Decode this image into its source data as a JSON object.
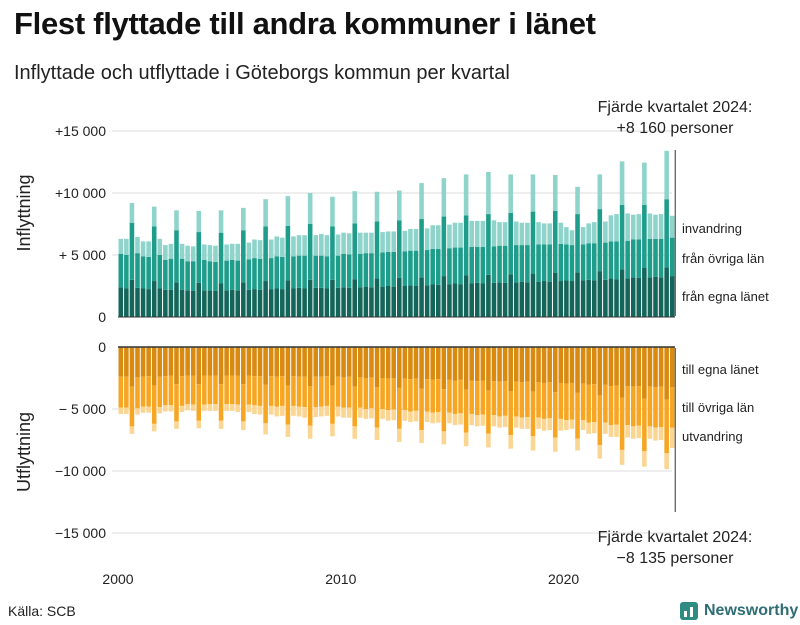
{
  "title": "Flest flyttade till andra kommuner i länet",
  "subtitle": "Inflyttade och utflyttade i Göteborgs kommun per kvartal",
  "source": "Källa: SCB",
  "brand": "Newsworthy",
  "annotations": {
    "top_line1": "Fjärde kvartalet 2024:",
    "top_line2": "+8 160 personer",
    "bottom_line1": "Fjärde kvartalet 2024:",
    "bottom_line2": "−8 135 personer"
  },
  "colors": {
    "in_egna": "#15665a",
    "in_ovriga": "#1f9d8b",
    "in_invandring": "#8fd4cb",
    "out_egna": "#d98a10",
    "out_ovriga": "#f6a623",
    "out_utvandring": "#fbd592",
    "grid": "#dddddd",
    "axis": "#333333"
  },
  "chart_data": {
    "type": "bar",
    "stacked": true,
    "title": "Flest flyttade till andra kommuner i länet",
    "panels": [
      {
        "name": "Inflyttning",
        "ylabel": "Inflyttning",
        "ylim": [
          0,
          16000
        ],
        "yticks": [
          {
            "value": 0,
            "label": "0"
          },
          {
            "value": 5000,
            "label": "+ 5 000"
          },
          {
            "value": 10000,
            "label": "+10 000"
          },
          {
            "value": 15000,
            "label": "+15 000"
          }
        ],
        "series": [
          {
            "name": "från egna länet",
            "label": "från egna länet",
            "color_key": "in_egna"
          },
          {
            "name": "från övriga län",
            "label": "från övriga län",
            "color_key": "in_ovriga"
          },
          {
            "name": "invandring",
            "label": "invandring",
            "color_key": "in_invandring"
          }
        ]
      },
      {
        "name": "Utflyttning",
        "ylabel": "Utflyttning",
        "ylim": [
          -15000,
          0
        ],
        "yticks": [
          {
            "value": 0,
            "label": "0"
          },
          {
            "value": -5000,
            "label": "− 5 000"
          },
          {
            "value": -10000,
            "label": "−10 000"
          },
          {
            "value": -15000,
            "label": "−15 000"
          }
        ],
        "series": [
          {
            "name": "till egna länet",
            "label": "till egna länet",
            "color_key": "out_egna"
          },
          {
            "name": "till övriga län",
            "label": "till övriga län",
            "color_key": "out_ovriga"
          },
          {
            "name": "utvandring",
            "label": "utvandring",
            "color_key": "out_utvandring"
          }
        ]
      }
    ],
    "x": {
      "start_year": 2000,
      "quarters": 100,
      "ticks": [
        {
          "year": 2000,
          "label": "2000"
        },
        {
          "year": 2010,
          "label": "2010"
        },
        {
          "year": 2020,
          "label": "2020"
        }
      ]
    },
    "years": [
      {
        "year": 2000,
        "in_egna": [
          2400,
          2300,
          3000,
          2350
        ],
        "in_ovriga": [
          2700,
          2700,
          4600,
          2800
        ],
        "in_inv": [
          1200,
          1300,
          1600,
          1300
        ],
        "out_egna": [
          2400,
          2400,
          3200,
          2450
        ],
        "out_ovriga": [
          2500,
          2500,
          3200,
          2500
        ],
        "out_utv": [
          500,
          500,
          600,
          500
        ]
      },
      {
        "year": 2001,
        "in_egna": [
          2300,
          2250,
          2900,
          2300
        ],
        "in_ovriga": [
          2600,
          2600,
          4400,
          2700
        ],
        "in_inv": [
          1200,
          1250,
          1600,
          1300
        ],
        "out_egna": [
          2400,
          2350,
          3100,
          2400
        ],
        "out_ovriga": [
          2400,
          2450,
          3100,
          2450
        ],
        "out_utv": [
          500,
          500,
          600,
          500
        ]
      },
      {
        "year": 2002,
        "in_egna": [
          2200,
          2200,
          2800,
          2200
        ],
        "in_ovriga": [
          2400,
          2500,
          4200,
          2500
        ],
        "in_inv": [
          1200,
          1200,
          1600,
          1200
        ],
        "out_egna": [
          2350,
          2300,
          3000,
          2350
        ],
        "out_ovriga": [
          2350,
          2400,
          3000,
          2400
        ],
        "out_utv": [
          500,
          500,
          600,
          500
        ]
      },
      {
        "year": 2003,
        "in_egna": [
          2150,
          2100,
          2750,
          2150
        ],
        "in_ovriga": [
          2350,
          2400,
          4100,
          2450
        ],
        "in_inv": [
          1250,
          1200,
          1700,
          1250
        ],
        "out_egna": [
          2300,
          2300,
          3000,
          2300
        ],
        "out_ovriga": [
          2300,
          2350,
          2950,
          2350
        ],
        "out_utv": [
          500,
          500,
          600,
          500
        ]
      },
      {
        "year": 2004,
        "in_egna": [
          2150,
          2100,
          2700,
          2150
        ],
        "in_ovriga": [
          2350,
          2350,
          4100,
          2400
        ],
        "in_inv": [
          1300,
          1300,
          1800,
          1300
        ],
        "out_egna": [
          2300,
          2300,
          3000,
          2300
        ],
        "out_ovriga": [
          2300,
          2300,
          2950,
          2300
        ],
        "out_utv": [
          550,
          550,
          650,
          550
        ]
      },
      {
        "year": 2005,
        "in_egna": [
          2200,
          2150,
          2800,
          2200
        ],
        "in_ovriga": [
          2400,
          2400,
          4200,
          2450
        ],
        "in_inv": [
          1300,
          1350,
          1800,
          1350
        ],
        "out_egna": [
          2300,
          2300,
          3000,
          2300
        ],
        "out_ovriga": [
          2300,
          2350,
          3000,
          2350
        ],
        "out_utv": [
          550,
          600,
          700,
          600
        ]
      },
      {
        "year": 2006,
        "in_egna": [
          2250,
          2200,
          2900,
          2250
        ],
        "in_ovriga": [
          2500,
          2500,
          4400,
          2500
        ],
        "in_inv": [
          1500,
          1500,
          2200,
          1500
        ],
        "out_egna": [
          2350,
          2350,
          3050,
          2350
        ],
        "out_ovriga": [
          2350,
          2400,
          3100,
          2400
        ],
        "out_utv": [
          700,
          700,
          900,
          700
        ]
      },
      {
        "year": 2007,
        "in_egna": [
          2300,
          2250,
          2950,
          2300
        ],
        "in_ovriga": [
          2600,
          2600,
          4400,
          2600
        ],
        "in_inv": [
          1600,
          1550,
          2400,
          1600
        ],
        "out_egna": [
          2400,
          2350,
          3100,
          2350
        ],
        "out_ovriga": [
          2400,
          2400,
          3150,
          2400
        ],
        "out_utv": [
          800,
          800,
          1000,
          800
        ]
      },
      {
        "year": 2008,
        "in_egna": [
          2350,
          2300,
          3000,
          2350
        ],
        "in_ovriga": [
          2600,
          2650,
          4500,
          2600
        ],
        "in_inv": [
          1650,
          1650,
          2500,
          1650
        ],
        "out_egna": [
          2400,
          2400,
          3150,
          2400
        ],
        "out_ovriga": [
          2400,
          2450,
          3200,
          2450
        ],
        "out_utv": [
          800,
          850,
          1050,
          800
        ]
      },
      {
        "year": 2009,
        "in_egna": [
          2350,
          2300,
          3000,
          2350
        ],
        "in_ovriga": [
          2600,
          2600,
          4300,
          2600
        ],
        "in_inv": [
          1750,
          1700,
          2400,
          1700
        ],
        "out_egna": [
          2400,
          2350,
          3100,
          2400
        ],
        "out_ovriga": [
          2400,
          2400,
          3100,
          2400
        ],
        "out_utv": [
          800,
          800,
          1000,
          800
        ]
      },
      {
        "year": 2010,
        "in_egna": [
          2400,
          2350,
          3050,
          2400
        ],
        "in_ovriga": [
          2700,
          2700,
          4500,
          2700
        ],
        "in_inv": [
          1700,
          1700,
          2600,
          1700
        ],
        "out_egna": [
          2450,
          2400,
          3200,
          2450
        ],
        "out_ovriga": [
          2450,
          2500,
          3200,
          2450
        ],
        "out_utv": [
          800,
          800,
          1000,
          800
        ]
      },
      {
        "year": 2011,
        "in_egna": [
          2450,
          2400,
          3100,
          2450
        ],
        "in_ovriga": [
          2700,
          2750,
          4600,
          2750
        ],
        "in_inv": [
          1650,
          1650,
          2400,
          1650
        ],
        "out_egna": [
          2500,
          2450,
          3250,
          2500
        ],
        "out_ovriga": [
          2500,
          2500,
          3250,
          2500
        ],
        "out_utv": [
          800,
          800,
          1000,
          800
        ]
      },
      {
        "year": 2012,
        "in_egna": [
          2500,
          2450,
          3150,
          2500
        ],
        "in_ovriga": [
          2750,
          2800,
          4650,
          2800
        ],
        "in_inv": [
          1650,
          1650,
          2400,
          1650
        ],
        "out_egna": [
          2550,
          2500,
          3300,
          2550
        ],
        "out_ovriga": [
          2550,
          2550,
          3300,
          2550
        ],
        "out_utv": [
          850,
          850,
          1050,
          850
        ]
      },
      {
        "year": 2013,
        "in_egna": [
          2550,
          2500,
          3200,
          2550
        ],
        "in_ovriga": [
          2800,
          2850,
          4700,
          2850
        ],
        "in_inv": [
          1750,
          1750,
          2900,
          1750
        ],
        "out_egna": [
          2600,
          2550,
          3350,
          2600
        ],
        "out_ovriga": [
          2600,
          2600,
          3350,
          2600
        ],
        "out_utv": [
          850,
          850,
          1050,
          850
        ]
      },
      {
        "year": 2014,
        "in_egna": [
          2650,
          2600,
          3300,
          2650
        ],
        "in_ovriga": [
          2850,
          2900,
          4800,
          2900
        ],
        "in_inv": [
          1900,
          1900,
          3100,
          1900
        ],
        "out_egna": [
          2650,
          2600,
          3400,
          2650
        ],
        "out_ovriga": [
          2650,
          2650,
          3400,
          2650
        ],
        "out_utv": [
          850,
          850,
          1050,
          850
        ]
      },
      {
        "year": 2015,
        "in_egna": [
          2700,
          2650,
          3350,
          2700
        ],
        "in_ovriga": [
          2900,
          2950,
          4850,
          2950
        ],
        "in_inv": [
          2000,
          2000,
          3300,
          2100
        ],
        "out_egna": [
          2700,
          2650,
          3450,
          2700
        ],
        "out_ovriga": [
          2700,
          2700,
          3450,
          2700
        ],
        "out_utv": [
          900,
          900,
          1100,
          900
        ]
      },
      {
        "year": 2016,
        "in_egna": [
          2750,
          2700,
          3400,
          2750
        ],
        "in_ovriga": [
          2900,
          2950,
          4900,
          2950
        ],
        "in_inv": [
          2100,
          2100,
          3400,
          2100
        ],
        "out_egna": [
          2750,
          2700,
          3500,
          2750
        ],
        "out_ovriga": [
          2750,
          2750,
          3500,
          2750
        ],
        "out_utv": [
          900,
          900,
          1100,
          900
        ]
      },
      {
        "year": 2017,
        "in_egna": [
          2800,
          2750,
          3450,
          2800
        ],
        "in_ovriga": [
          2950,
          3000,
          4950,
          3000
        ],
        "in_inv": [
          1900,
          1900,
          3100,
          1900
        ],
        "out_egna": [
          2800,
          2750,
          3550,
          2800
        ],
        "out_ovriga": [
          2800,
          2800,
          3550,
          2800
        ],
        "out_utv": [
          900,
          900,
          1100,
          900
        ]
      },
      {
        "year": 2018,
        "in_egna": [
          2850,
          2800,
          3500,
          2850
        ],
        "in_ovriga": [
          2950,
          3000,
          5000,
          3000
        ],
        "in_inv": [
          1800,
          1800,
          3000,
          1800
        ],
        "out_egna": [
          2850,
          2800,
          3600,
          2850
        ],
        "out_ovriga": [
          2850,
          2850,
          3600,
          2850
        ],
        "out_utv": [
          900,
          950,
          1150,
          900
        ]
      },
      {
        "year": 2019,
        "in_egna": [
          2900,
          2850,
          3550,
          2900
        ],
        "in_ovriga": [
          2950,
          3000,
          5000,
          3000
        ],
        "in_inv": [
          1700,
          1700,
          2900,
          1700
        ],
        "out_egna": [
          2900,
          2850,
          3650,
          2900
        ],
        "out_ovriga": [
          2900,
          2900,
          3650,
          2900
        ],
        "out_utv": [
          950,
          950,
          1150,
          950
        ]
      },
      {
        "year": 2020,
        "in_egna": [
          2950,
          2900,
          3600,
          2950
        ],
        "in_ovriga": [
          2900,
          2900,
          4700,
          2900
        ],
        "in_inv": [
          1400,
          1200,
          2200,
          1400
        ],
        "out_egna": [
          2950,
          2900,
          3700,
          2950
        ],
        "out_ovriga": [
          2950,
          2950,
          3700,
          2950
        ],
        "out_utv": [
          800,
          750,
          950,
          800
        ]
      },
      {
        "year": 2021,
        "in_egna": [
          3000,
          2950,
          3700,
          3000
        ],
        "in_ovriga": [
          2950,
          3000,
          5000,
          3000
        ],
        "in_inv": [
          1600,
          1700,
          2800,
          1700
        ],
        "out_egna": [
          3050,
          3000,
          3900,
          3050
        ],
        "out_ovriga": [
          3050,
          3050,
          4000,
          3050
        ],
        "out_utv": [
          900,
          900,
          1100,
          900
        ]
      },
      {
        "year": 2022,
        "in_egna": [
          3100,
          3050,
          3850,
          3100
        ],
        "in_ovriga": [
          3000,
          3050,
          5200,
          3050
        ],
        "in_inv": [
          2100,
          2200,
          3500,
          2200
        ],
        "out_egna": [
          3150,
          3100,
          4100,
          3150
        ],
        "out_ovriga": [
          3150,
          3150,
          4200,
          3150
        ],
        "out_utv": [
          950,
          1000,
          1200,
          1000
        ]
      },
      {
        "year": 2023,
        "in_egna": [
          3200,
          3150,
          3950,
          3200
        ],
        "in_ovriga": [
          3050,
          3100,
          5100,
          3100
        ],
        "in_inv": [
          2000,
          2050,
          3400,
          2050
        ],
        "out_egna": [
          3200,
          3150,
          4150,
          3200
        ],
        "out_ovriga": [
          3200,
          3200,
          4250,
          3200
        ],
        "out_utv": [
          1000,
          1000,
          1250,
          1000
        ]
      },
      {
        "year": 2024,
        "in_egna": [
          3250,
          3200,
          4000,
          3300
        ],
        "in_ovriga": [
          3050,
          3100,
          5500,
          3100
        ],
        "in_inv": [
          1950,
          2000,
          3900,
          1760
        ],
        "out_egna": [
          3250,
          3200,
          4250,
          3250
        ],
        "out_ovriga": [
          3250,
          3250,
          4300,
          3265
        ],
        "out_utv": [
          1050,
          1050,
          1300,
          1620
        ]
      }
    ]
  }
}
